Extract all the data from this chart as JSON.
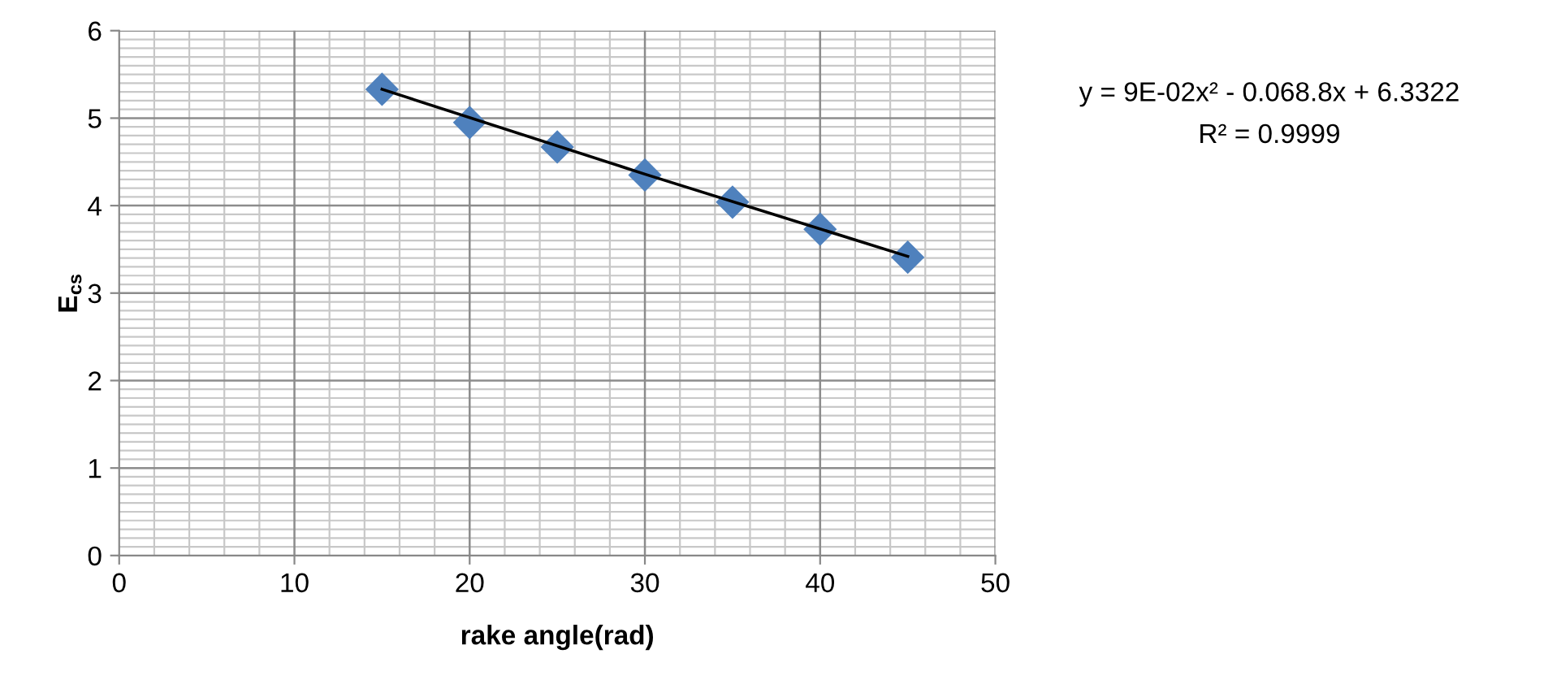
{
  "chart_data": {
    "type": "scatter",
    "xlabel": "rake angle(rad)",
    "ylabel": "E$_{cs}$",
    "xlim": [
      0,
      50
    ],
    "xticks": [
      0,
      10,
      20,
      30,
      40,
      50
    ],
    "ylim": [
      0,
      6
    ],
    "yticks": [
      0,
      1,
      2,
      3,
      4,
      5,
      6
    ],
    "grid": true,
    "marker": "diamond",
    "series": [
      {
        "color": "#4f81bd",
        "x": [
          15,
          20,
          25,
          30,
          35,
          40,
          45
        ],
        "values": [
          5.33,
          4.95,
          4.67,
          4.35,
          4.04,
          3.73,
          3.41
        ]
      },
      {
        "type": "line",
        "color": "#000000",
        "marker": "none",
        "line_style": "solid",
        "x": [
          15,
          30,
          45
        ],
        "values": [
          5.33,
          4.36,
          3.42
        ]
      }
    ],
    "annotations": [
      "y = 9E-02x² - 0.068.8x + 6.3322",
      "R² = 0.9999"
    ]
  }
}
